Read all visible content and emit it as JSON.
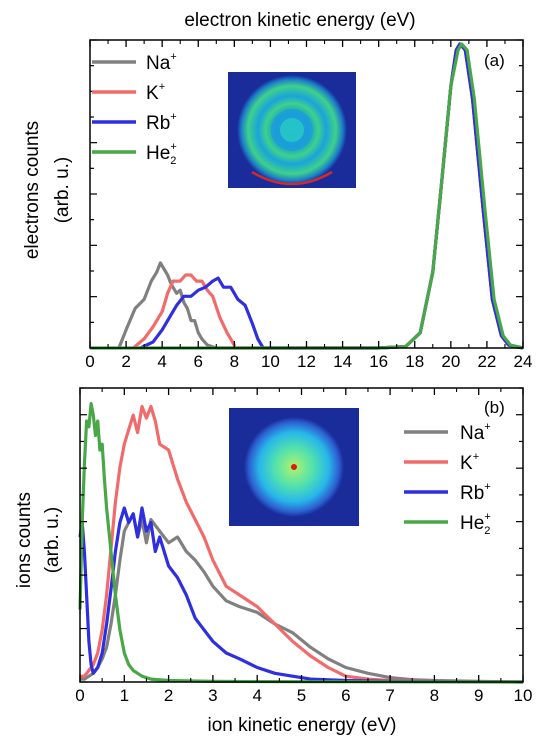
{
  "chart_data": [
    {
      "type": "line",
      "panel_label": "(a)",
      "xlabel": "electron kinetic energy (eV)",
      "xlabel_position": "top",
      "ylabel": "electrons counts",
      "ylabel_units": "(arb. u.)",
      "xlim": [
        0,
        24
      ],
      "ylim": [
        0,
        1.0
      ],
      "x_ticks": [
        "0",
        "2",
        "4",
        "6",
        "8",
        "10",
        "12",
        "14",
        "16",
        "18",
        "20",
        "22",
        "24"
      ],
      "y_tick_labels": false,
      "grid": false,
      "legend_position": "top-left",
      "inset": "electron velocity-map image (ring pattern)",
      "series": [
        {
          "name": "Na",
          "charge": "+",
          "color": "#808080",
          "x": [
            1.6,
            2.0,
            2.5,
            3.0,
            3.4,
            3.7,
            3.9,
            4.1,
            4.3,
            4.5,
            4.8,
            5.0,
            5.2,
            5.4,
            5.6,
            5.8,
            6.0,
            6.2,
            6.5,
            7.0,
            8,
            16,
            17.5,
            18.3,
            19.0,
            19.5,
            20.0,
            20.3,
            20.5,
            20.8,
            21.2,
            21.8,
            22.3,
            22.8,
            23.2,
            24.0
          ],
          "y": [
            0,
            0.06,
            0.13,
            0.16,
            0.22,
            0.25,
            0.28,
            0.26,
            0.24,
            0.21,
            0.18,
            0.19,
            0.15,
            0.13,
            0.09,
            0.09,
            0.05,
            0.03,
            0.01,
            0,
            0,
            0,
            0.005,
            0.05,
            0.25,
            0.55,
            0.86,
            0.98,
            1.0,
            0.98,
            0.82,
            0.45,
            0.16,
            0.04,
            0.01,
            0
          ]
        },
        {
          "name": "K",
          "charge": "+",
          "color": "#f26b6b",
          "x": [
            2.4,
            3.0,
            3.5,
            4.0,
            4.3,
            4.6,
            5.0,
            5.3,
            5.6,
            5.9,
            6.2,
            6.5,
            6.8,
            7.2,
            7.6,
            8.0,
            8,
            16,
            17.5,
            18.3,
            19.0,
            19.5,
            20.0,
            20.3,
            20.5,
            20.8,
            21.2,
            21.8,
            22.3,
            22.8,
            23.2,
            24.0
          ],
          "y": [
            0,
            0.03,
            0.07,
            0.12,
            0.18,
            0.22,
            0.22,
            0.24,
            0.24,
            0.22,
            0.22,
            0.19,
            0.17,
            0.1,
            0.05,
            0.01,
            0,
            0,
            0.005,
            0.05,
            0.25,
            0.55,
            0.86,
            0.98,
            1.0,
            0.98,
            0.82,
            0.45,
            0.16,
            0.04,
            0.01,
            0
          ]
        },
        {
          "name": "Rb",
          "charge": "+",
          "color": "#2f2fe0",
          "x": [
            2.8,
            3.5,
            4.0,
            4.4,
            4.8,
            5.2,
            5.6,
            6.0,
            6.4,
            6.8,
            7.1,
            7.4,
            7.8,
            8.2,
            8.6,
            9.0,
            9.3,
            9.6,
            16,
            17.5,
            18.3,
            19.0,
            19.5,
            20.0,
            20.3,
            20.5,
            20.8,
            21.2,
            21.8,
            22.3,
            22.8,
            23.2,
            24.0
          ],
          "y": [
            0,
            0.02,
            0.06,
            0.1,
            0.14,
            0.17,
            0.17,
            0.19,
            0.2,
            0.22,
            0.23,
            0.2,
            0.2,
            0.16,
            0.14,
            0.08,
            0.03,
            0,
            0,
            0.005,
            0.05,
            0.25,
            0.55,
            0.86,
            0.98,
            1.0,
            0.98,
            0.82,
            0.45,
            0.16,
            0.04,
            0.01,
            0
          ]
        },
        {
          "name": "He",
          "charge": "+",
          "subscript": "2",
          "color": "#48a848",
          "x": [
            0,
            16,
            17.5,
            18.3,
            19.0,
            19.5,
            20.0,
            20.4,
            20.6,
            20.9,
            21.3,
            21.9,
            22.4,
            22.9,
            23.3,
            24.0
          ],
          "y": [
            0,
            0,
            0.005,
            0.05,
            0.25,
            0.55,
            0.86,
            0.98,
            1.0,
            0.98,
            0.82,
            0.45,
            0.16,
            0.04,
            0.01,
            0
          ]
        }
      ]
    },
    {
      "type": "line",
      "panel_label": "(b)",
      "xlabel": "ion kinetic energy (eV)",
      "ylabel": "ions counts",
      "ylabel_units": "(arb. u.)",
      "xlim": [
        0,
        10
      ],
      "ylim": [
        0,
        1.0
      ],
      "x_ticks": [
        "0",
        "1",
        "2",
        "3",
        "4",
        "5",
        "6",
        "7",
        "8",
        "9",
        "10"
      ],
      "y_tick_labels": false,
      "grid": false,
      "legend_position": "top-right",
      "inset": "ion velocity-map image (central spot)",
      "series": [
        {
          "name": "Na",
          "charge": "+",
          "color": "#808080",
          "x": [
            0,
            0.1,
            0.2,
            0.3,
            0.4,
            0.5,
            0.6,
            0.7,
            0.8,
            0.9,
            1.0,
            1.1,
            1.2,
            1.3,
            1.4,
            1.5,
            1.6,
            1.8,
            2.0,
            2.2,
            2.4,
            2.6,
            2.8,
            3.0,
            3.3,
            3.6,
            4.0,
            4.4,
            4.8,
            5.2,
            5.6,
            6.0,
            6.5,
            7.0,
            7.5,
            8.0,
            9.0,
            10.0
          ],
          "y": [
            0.01,
            0.01,
            0.02,
            0.03,
            0.05,
            0.08,
            0.12,
            0.2,
            0.3,
            0.42,
            0.52,
            0.55,
            0.58,
            0.5,
            0.56,
            0.48,
            0.56,
            0.52,
            0.48,
            0.5,
            0.45,
            0.42,
            0.38,
            0.33,
            0.28,
            0.26,
            0.24,
            0.2,
            0.17,
            0.12,
            0.08,
            0.05,
            0.03,
            0.015,
            0.008,
            0.005,
            0.002,
            0
          ]
        },
        {
          "name": "K",
          "charge": "+",
          "color": "#f26b6b",
          "x": [
            0,
            0.1,
            0.2,
            0.3,
            0.4,
            0.5,
            0.6,
            0.7,
            0.8,
            0.9,
            1.0,
            1.1,
            1.2,
            1.3,
            1.4,
            1.5,
            1.6,
            1.7,
            1.8,
            2.0,
            2.2,
            2.4,
            2.6,
            2.8,
            3.0,
            3.3,
            3.6,
            4.0,
            4.4,
            4.8,
            5.2,
            5.6,
            6.0,
            6.5,
            7.0,
            8.0,
            10.0
          ],
          "y": [
            0.02,
            0.02,
            0.04,
            0.06,
            0.1,
            0.18,
            0.3,
            0.46,
            0.62,
            0.74,
            0.82,
            0.87,
            0.92,
            0.86,
            0.95,
            0.91,
            0.95,
            0.9,
            0.82,
            0.8,
            0.7,
            0.62,
            0.56,
            0.5,
            0.42,
            0.33,
            0.3,
            0.26,
            0.2,
            0.14,
            0.09,
            0.05,
            0.02,
            0.01,
            0.005,
            0.002,
            0
          ]
        },
        {
          "name": "Rb",
          "charge": "+",
          "color": "#2f2fe0",
          "x": [
            0,
            0.05,
            0.1,
            0.15,
            0.2,
            0.25,
            0.3,
            0.4,
            0.5,
            0.6,
            0.7,
            0.8,
            0.9,
            1.0,
            1.1,
            1.2,
            1.3,
            1.4,
            1.5,
            1.6,
            1.7,
            1.8,
            2.0,
            2.2,
            2.4,
            2.6,
            2.8,
            3.0,
            3.3,
            3.6,
            4.0,
            4.4,
            4.8,
            5.2,
            6.0,
            7.0,
            10.0
          ],
          "y": [
            0.5,
            0.55,
            0.45,
            0.3,
            0.14,
            0.06,
            0.03,
            0.05,
            0.1,
            0.2,
            0.32,
            0.45,
            0.55,
            0.6,
            0.55,
            0.58,
            0.5,
            0.6,
            0.52,
            0.55,
            0.45,
            0.5,
            0.4,
            0.36,
            0.3,
            0.22,
            0.18,
            0.14,
            0.1,
            0.08,
            0.05,
            0.03,
            0.02,
            0.01,
            0.005,
            0.002,
            0
          ]
        },
        {
          "name": "He",
          "charge": "+",
          "subscript": "2",
          "color": "#48a848",
          "x": [
            0,
            0.05,
            0.1,
            0.15,
            0.2,
            0.25,
            0.3,
            0.35,
            0.4,
            0.45,
            0.5,
            0.55,
            0.6,
            0.7,
            0.8,
            0.9,
            1.0,
            1.1,
            1.2,
            1.4,
            1.6,
            2.0,
            3.0,
            5.0,
            10.0
          ],
          "y": [
            0.25,
            0.55,
            0.75,
            0.9,
            0.88,
            0.96,
            0.92,
            0.85,
            0.9,
            0.8,
            0.82,
            0.7,
            0.6,
            0.45,
            0.3,
            0.18,
            0.1,
            0.06,
            0.04,
            0.02,
            0.01,
            0.005,
            0.002,
            0.001,
            0
          ]
        }
      ]
    }
  ]
}
